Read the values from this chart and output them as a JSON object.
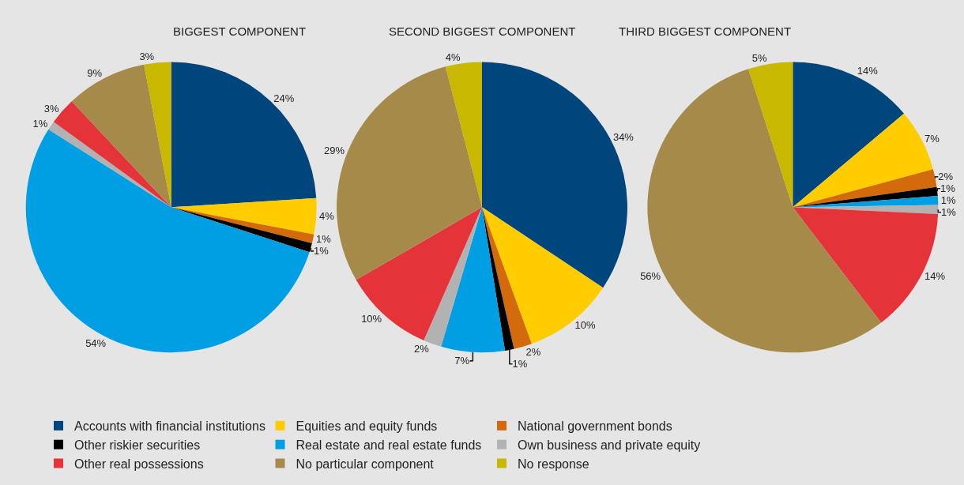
{
  "chart_data": [
    {
      "type": "pie",
      "title": "BIGGEST COMPONENT",
      "legend": "bottom",
      "categories": [
        "Accounts with financial institutions",
        "Equities and equity funds",
        "National government bonds",
        "Other riskier securities",
        "Real estate and real estate funds",
        "Own business and private equity",
        "Other real possessions",
        "No particular component",
        "No response"
      ],
      "values": [
        24,
        4,
        1,
        1,
        54,
        1,
        3,
        9,
        3
      ],
      "value_labels": [
        "24%",
        "4%",
        "1%",
        "1%",
        "54%",
        "1%",
        "3%",
        "9%",
        "3%"
      ],
      "colors": [
        "#00457c",
        "#ffcc00",
        "#d36a0c",
        "#000000",
        "#009fe3",
        "#b2b2b2",
        "#e5333a",
        "#a68a4a",
        "#c8b900"
      ]
    },
    {
      "type": "pie",
      "title": "SECOND BIGGEST COMPONENT",
      "categories": [
        null,
        null,
        null,
        null,
        null,
        null,
        null,
        null,
        null
      ],
      "values": [
        34,
        10,
        2,
        1,
        7,
        2,
        10,
        29,
        4
      ],
      "value_labels": [
        "34%",
        "10%",
        "2%",
        "1%",
        "7%",
        "2%",
        "10%",
        "29%",
        "4%"
      ],
      "colors": [
        "#00457c",
        "#ffcc00",
        "#d36a0c",
        "#000000",
        "#009fe3",
        "#b2b2b2",
        "#e5333a",
        "#a68a4a",
        "#c8b900"
      ]
    },
    {
      "type": "pie",
      "title": "THIRD BIGGEST COMPONENT",
      "categories": [
        null,
        null,
        null,
        null,
        null,
        null,
        null,
        null,
        null
      ],
      "values": [
        14,
        7,
        2,
        1,
        1,
        1,
        14,
        56,
        5
      ],
      "value_labels": [
        "14%",
        "7%",
        "2%",
        "1%",
        "1%",
        "1%",
        "14%",
        "56%",
        "5%"
      ],
      "colors": [
        "#00457c",
        "#ffcc00",
        "#d36a0c",
        "#000000",
        "#009fe3",
        "#b2b2b2",
        "#e5333a",
        "#a68a4a",
        "#c8b900"
      ]
    }
  ]
}
